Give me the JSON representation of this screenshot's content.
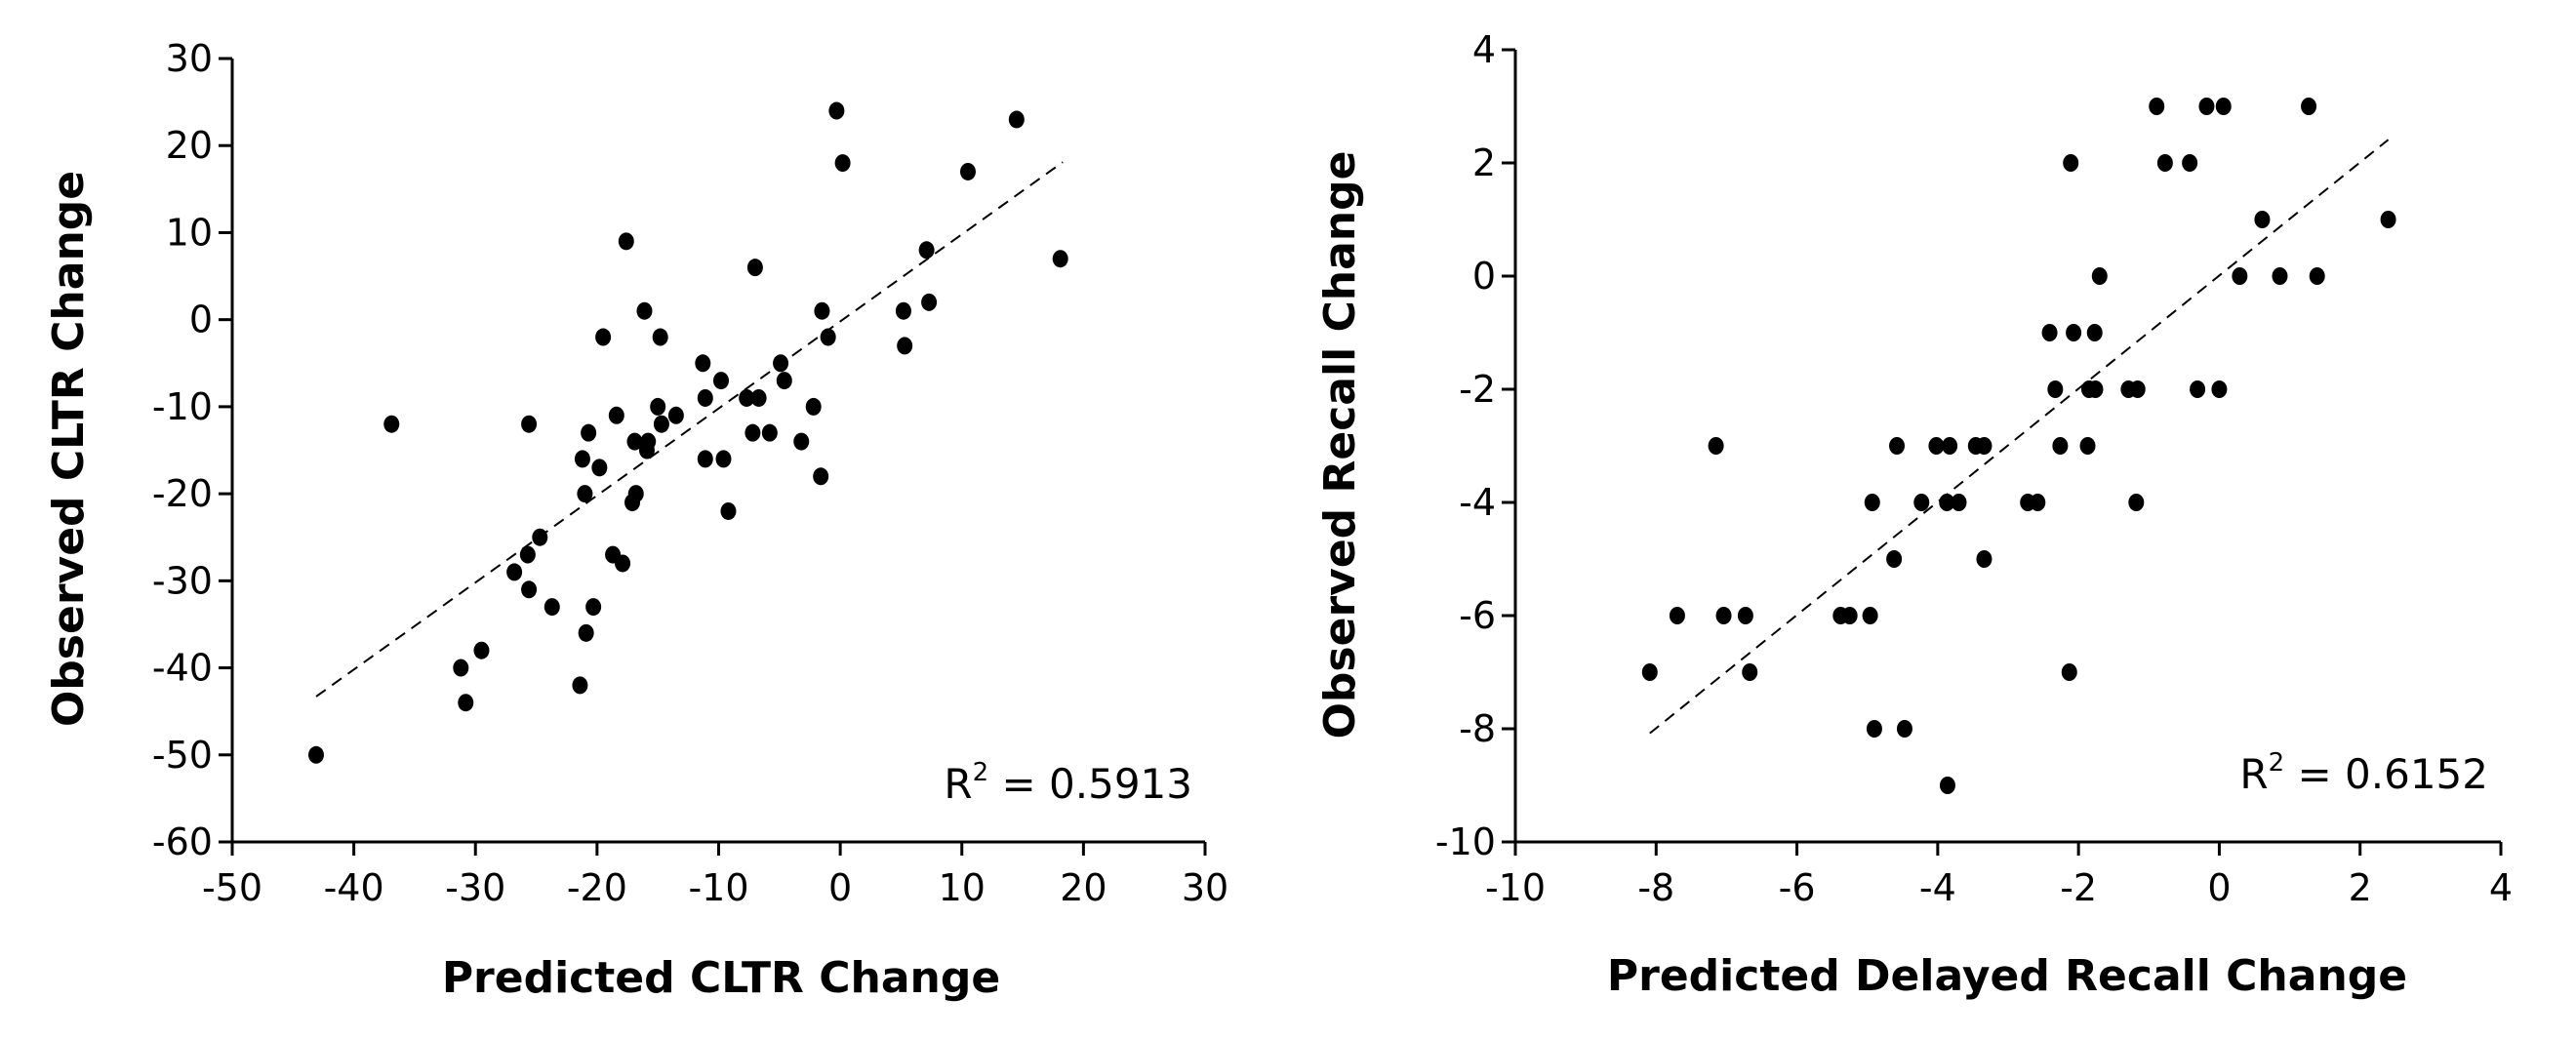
{
  "chart_data": [
    {
      "type": "scatter",
      "xlabel": "Predicted CLTR Change",
      "ylabel": "Observed CLTR Change",
      "xlim": [
        -50,
        30
      ],
      "ylim": [
        -60,
        30
      ],
      "xticks": [
        "-50",
        "-40",
        "-30",
        "-20",
        "-10",
        "0",
        "10",
        "20",
        "30"
      ],
      "yticks": [
        "30",
        "20",
        "10",
        "0",
        "-10",
        "-20",
        "-30",
        "-40",
        "-50",
        "-60"
      ],
      "grid": false,
      "annotation": {
        "prefix": "R",
        "sup": "2",
        "text": " = 0.5913"
      },
      "trendline": {
        "x": [
          -43.1,
          18.3
        ],
        "y": [
          -43.3,
          18.1
        ],
        "style": "dashed"
      },
      "points": [
        [
          -0.3,
          24
        ],
        [
          14.5,
          23
        ],
        [
          0.2,
          18
        ],
        [
          10.5,
          17
        ],
        [
          -17.6,
          9
        ],
        [
          18.1,
          7
        ],
        [
          -7,
          6
        ],
        [
          7.1,
          8
        ],
        [
          7.3,
          2
        ],
        [
          -1.5,
          1
        ],
        [
          5.2,
          1
        ],
        [
          5.3,
          -3
        ],
        [
          -16.1,
          1
        ],
        [
          -19.5,
          -2
        ],
        [
          -14.8,
          -2
        ],
        [
          -1,
          -2
        ],
        [
          -11.3,
          -5
        ],
        [
          -4.9,
          -5
        ],
        [
          -9.8,
          -7
        ],
        [
          -4.6,
          -7
        ],
        [
          -11.1,
          -9
        ],
        [
          -7.7,
          -9
        ],
        [
          -6.7,
          -9
        ],
        [
          -15,
          -10
        ],
        [
          -2.2,
          -10
        ],
        [
          -36.9,
          -12
        ],
        [
          -25.6,
          -12
        ],
        [
          -18.4,
          -11
        ],
        [
          -13.5,
          -11
        ],
        [
          -14.7,
          -12
        ],
        [
          -20.7,
          -13
        ],
        [
          -16.9,
          -14
        ],
        [
          -15.8,
          -14
        ],
        [
          -15.9,
          -15
        ],
        [
          -7.2,
          -13
        ],
        [
          -5.8,
          -13
        ],
        [
          -3.2,
          -14
        ],
        [
          -21.2,
          -16
        ],
        [
          -19.8,
          -17
        ],
        [
          -11.1,
          -16
        ],
        [
          -9.6,
          -16
        ],
        [
          -1.6,
          -18
        ],
        [
          -21,
          -20
        ],
        [
          -16.8,
          -20
        ],
        [
          -17.1,
          -21
        ],
        [
          -9.2,
          -22
        ],
        [
          -24.7,
          -25
        ],
        [
          -25.7,
          -27
        ],
        [
          -18.7,
          -27
        ],
        [
          -17.9,
          -28
        ],
        [
          -26.8,
          -29
        ],
        [
          -25.6,
          -31
        ],
        [
          -23.7,
          -33
        ],
        [
          -20.3,
          -33
        ],
        [
          -20.9,
          -36
        ],
        [
          -29.5,
          -38
        ],
        [
          -31.2,
          -40
        ],
        [
          -30.8,
          -44
        ],
        [
          -21.4,
          -42
        ],
        [
          -43.1,
          -50
        ]
      ]
    },
    {
      "type": "scatter",
      "xlabel": "Predicted Delayed Recall Change",
      "ylabel": "Observed Recall Change",
      "xlim": [
        -10,
        4
      ],
      "ylim": [
        -10,
        4
      ],
      "xticks": [
        "-10",
        "-8",
        "-6",
        "-4",
        "-2",
        "0",
        "2",
        "4"
      ],
      "yticks": [
        "4",
        "2",
        "0",
        "-2",
        "-4",
        "-6",
        "-8",
        "-10"
      ],
      "grid": false,
      "annotation": {
        "prefix": "R",
        "sup": "2",
        "text": " = 0.6152"
      },
      "trendline": {
        "x": [
          -8.09,
          2.4
        ],
        "y": [
          -8.08,
          2.41
        ],
        "style": "dashed"
      },
      "points": [
        [
          -0.89,
          3
        ],
        [
          -0.18,
          3
        ],
        [
          0.06,
          3
        ],
        [
          1.27,
          3
        ],
        [
          -2.11,
          2
        ],
        [
          -0.77,
          2
        ],
        [
          -0.42,
          2
        ],
        [
          0.61,
          1
        ],
        [
          2.4,
          1
        ],
        [
          -1.7,
          0
        ],
        [
          0.29,
          0
        ],
        [
          0.86,
          0
        ],
        [
          1.39,
          0
        ],
        [
          -2.41,
          -1
        ],
        [
          -2.07,
          -1
        ],
        [
          -1.77,
          -1
        ],
        [
          -2.33,
          -2
        ],
        [
          -1.85,
          -2
        ],
        [
          -1.76,
          -2
        ],
        [
          -1.29,
          -2
        ],
        [
          -1.16,
          -2
        ],
        [
          -0.31,
          -2
        ],
        [
          0,
          -2
        ],
        [
          -7.15,
          -3
        ],
        [
          -4.58,
          -3
        ],
        [
          -4.02,
          -3
        ],
        [
          -3.83,
          -3
        ],
        [
          -3.46,
          -3
        ],
        [
          -3.34,
          -3
        ],
        [
          -2.26,
          -3
        ],
        [
          -1.87,
          -3
        ],
        [
          -4.93,
          -4
        ],
        [
          -4.23,
          -4
        ],
        [
          -3.87,
          -4
        ],
        [
          -3.7,
          -4
        ],
        [
          -2.72,
          -4
        ],
        [
          -2.58,
          -4
        ],
        [
          -1.18,
          -4
        ],
        [
          -4.62,
          -5
        ],
        [
          -3.34,
          -5
        ],
        [
          -7.7,
          -6
        ],
        [
          -7.04,
          -6
        ],
        [
          -6.73,
          -6
        ],
        [
          -5.38,
          -6
        ],
        [
          -5.25,
          -6
        ],
        [
          -4.96,
          -6
        ],
        [
          -8.09,
          -7
        ],
        [
          -6.67,
          -7
        ],
        [
          -2.13,
          -7
        ],
        [
          -4.9,
          -8
        ],
        [
          -4.47,
          -8
        ],
        [
          -3.86,
          -9
        ]
      ]
    }
  ]
}
